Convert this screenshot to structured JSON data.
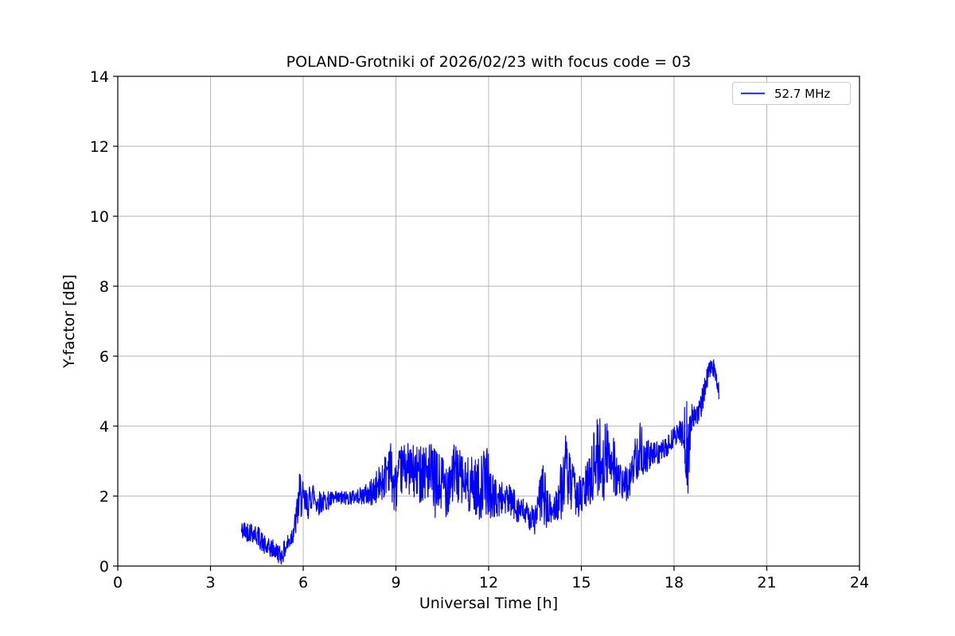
{
  "chart_data": {
    "type": "line",
    "title": "POLAND-Grotniki of 2026/02/23 with focus code = 03",
    "xlabel": "Universal Time [h]",
    "ylabel": "Y-factor [dB]",
    "xlim": [
      0,
      24
    ],
    "ylim": [
      0,
      14
    ],
    "xticks": [
      0,
      3,
      6,
      9,
      12,
      15,
      18,
      21,
      24
    ],
    "yticks": [
      0,
      2,
      4,
      6,
      8,
      10,
      12,
      14
    ],
    "grid": true,
    "background": "#ffffff",
    "legend": {
      "position": "upper right",
      "entries": [
        {
          "label": "52.7 MHz",
          "color": "#0000ff"
        }
      ]
    },
    "series": [
      {
        "name": "52.7 MHz",
        "color": "#0000ff",
        "x_start": 4.0,
        "x_end": 19.45,
        "x_step": 0.01,
        "trend": [
          [
            4.0,
            1.0
          ],
          [
            4.3,
            1.0
          ],
          [
            4.55,
            0.85
          ],
          [
            4.8,
            0.5
          ],
          [
            5.0,
            0.5
          ],
          [
            5.15,
            0.4
          ],
          [
            5.3,
            0.3
          ],
          [
            5.45,
            0.55
          ],
          [
            5.6,
            0.8
          ],
          [
            5.75,
            1.2
          ],
          [
            5.9,
            2.1
          ],
          [
            6.0,
            1.8
          ],
          [
            6.15,
            1.75
          ],
          [
            6.3,
            2.1
          ],
          [
            6.45,
            1.8
          ],
          [
            6.7,
            1.85
          ],
          [
            7.0,
            1.9
          ],
          [
            7.4,
            1.95
          ],
          [
            7.8,
            2.0
          ],
          [
            8.1,
            2.05
          ],
          [
            8.35,
            2.2
          ],
          [
            8.6,
            2.5
          ],
          [
            8.8,
            3.0
          ],
          [
            8.95,
            2.1
          ],
          [
            9.1,
            2.6
          ],
          [
            9.3,
            2.9
          ],
          [
            9.5,
            2.7
          ],
          [
            9.7,
            2.6
          ],
          [
            9.9,
            2.8
          ],
          [
            10.1,
            2.6
          ],
          [
            10.3,
            2.3
          ],
          [
            10.5,
            2.3
          ],
          [
            10.7,
            2.4
          ],
          [
            10.9,
            2.7
          ],
          [
            11.1,
            2.5
          ],
          [
            11.3,
            2.3
          ],
          [
            11.5,
            2.3
          ],
          [
            11.7,
            2.2
          ],
          [
            11.95,
            2.5
          ],
          [
            12.1,
            2.0
          ],
          [
            12.3,
            1.9
          ],
          [
            12.5,
            1.95
          ],
          [
            12.7,
            1.85
          ],
          [
            12.9,
            1.7
          ],
          [
            13.1,
            1.55
          ],
          [
            13.3,
            1.4
          ],
          [
            13.5,
            1.3
          ],
          [
            13.75,
            2.2
          ],
          [
            13.9,
            1.55
          ],
          [
            14.1,
            1.6
          ],
          [
            14.3,
            2.0
          ],
          [
            14.5,
            2.8
          ],
          [
            14.65,
            2.3
          ],
          [
            14.8,
            2.1
          ],
          [
            15.0,
            1.95
          ],
          [
            15.2,
            2.3
          ],
          [
            15.4,
            2.9
          ],
          [
            15.55,
            3.1
          ],
          [
            15.7,
            3.0
          ],
          [
            15.85,
            3.1
          ],
          [
            16.0,
            3.3
          ],
          [
            16.15,
            2.5
          ],
          [
            16.35,
            2.3
          ],
          [
            16.55,
            2.4
          ],
          [
            16.75,
            3.1
          ],
          [
            16.9,
            3.4
          ],
          [
            17.05,
            3.1
          ],
          [
            17.25,
            3.15
          ],
          [
            17.5,
            3.25
          ],
          [
            17.75,
            3.35
          ],
          [
            18.0,
            3.7
          ],
          [
            18.2,
            3.85
          ],
          [
            18.35,
            3.7
          ],
          [
            18.45,
            2.9
          ],
          [
            18.55,
            4.2
          ],
          [
            18.7,
            4.35
          ],
          [
            18.85,
            4.5
          ],
          [
            19.0,
            5.1
          ],
          [
            19.1,
            5.5
          ],
          [
            19.2,
            5.65
          ],
          [
            19.3,
            5.65
          ],
          [
            19.4,
            5.3
          ],
          [
            19.45,
            5.0
          ]
        ],
        "noise_band": [
          [
            4.0,
            0.3
          ],
          [
            4.6,
            0.3
          ],
          [
            5.0,
            0.28
          ],
          [
            5.4,
            0.28
          ],
          [
            5.7,
            0.35
          ],
          [
            5.9,
            0.7
          ],
          [
            6.1,
            0.45
          ],
          [
            6.4,
            0.4
          ],
          [
            6.7,
            0.28
          ],
          [
            7.2,
            0.22
          ],
          [
            7.8,
            0.22
          ],
          [
            8.2,
            0.4
          ],
          [
            8.6,
            0.6
          ],
          [
            8.8,
            0.8
          ],
          [
            9.0,
            0.7
          ],
          [
            9.3,
            0.7
          ],
          [
            9.6,
            0.8
          ],
          [
            9.9,
            0.9
          ],
          [
            10.2,
            1.0
          ],
          [
            10.5,
            1.0
          ],
          [
            10.8,
            0.9
          ],
          [
            11.1,
            0.8
          ],
          [
            11.4,
            0.8
          ],
          [
            11.7,
            0.9
          ],
          [
            11.95,
            1.0
          ],
          [
            12.15,
            0.6
          ],
          [
            12.5,
            0.5
          ],
          [
            12.9,
            0.45
          ],
          [
            13.3,
            0.35
          ],
          [
            13.6,
            0.5
          ],
          [
            13.75,
            1.0
          ],
          [
            13.95,
            0.5
          ],
          [
            14.2,
            0.5
          ],
          [
            14.45,
            1.1
          ],
          [
            14.7,
            0.7
          ],
          [
            15.0,
            0.6
          ],
          [
            15.25,
            0.8
          ],
          [
            15.5,
            1.2
          ],
          [
            15.8,
            1.2
          ],
          [
            16.05,
            1.0
          ],
          [
            16.3,
            0.5
          ],
          [
            16.6,
            0.5
          ],
          [
            16.85,
            0.8
          ],
          [
            17.1,
            0.5
          ],
          [
            17.4,
            0.35
          ],
          [
            17.8,
            0.3
          ],
          [
            18.1,
            0.3
          ],
          [
            18.3,
            0.4
          ],
          [
            18.42,
            1.7
          ],
          [
            18.55,
            0.4
          ],
          [
            18.8,
            0.35
          ],
          [
            19.0,
            0.35
          ],
          [
            19.2,
            0.25
          ],
          [
            19.45,
            0.3
          ]
        ]
      }
    ]
  },
  "colors": {
    "line": "#0000ff",
    "grid": "#b0b0b0",
    "axis": "#000000",
    "background": "#ffffff",
    "legend_border": "#cccccc"
  }
}
